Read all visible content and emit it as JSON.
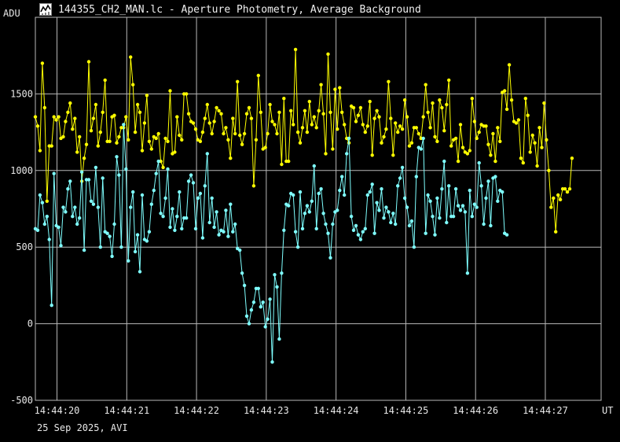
{
  "window": {
    "title": "144355_CH2_MAN.lc - Aperture Photometry, Average Background",
    "icon": "chart-app-icon"
  },
  "footer": {
    "text": "25 Sep 2025, AVI"
  },
  "colors": {
    "background": "#000000",
    "grid": "#b8b8b8",
    "series_yellow": "#ffff00",
    "series_cyan": "#7fffff"
  },
  "chart_data": {
    "type": "line",
    "title": "",
    "xlabel": "UT",
    "ylabel": "ADU",
    "grid": true,
    "ylim": [
      -500,
      2000
    ],
    "yticks": [
      -500,
      0,
      500,
      1000,
      1500
    ],
    "xlim": [
      "14:44:19.69",
      "14:44:27.80"
    ],
    "xtick_labels": [
      "14:44:20",
      "14:44:21",
      "14:44:22",
      "14:44:23",
      "14:44:24",
      "14:44:25",
      "14:44:26",
      "14:44:27"
    ],
    "x_start": "14:44:19.69",
    "x_step_s": 0.0333,
    "series": [
      {
        "color": "#ffff00",
        "values": [
          1350,
          1290,
          1130,
          1700,
          1410,
          800,
          1160,
          1160,
          1350,
          1330,
          1350,
          1210,
          1220,
          1320,
          1380,
          1440,
          1270,
          1340,
          1120,
          1220,
          930,
          1080,
          1170,
          1710,
          1260,
          1340,
          1430,
          1160,
          1250,
          1380,
          1590,
          1190,
          1190,
          1350,
          1360,
          1180,
          1220,
          1280,
          1280,
          1350,
          1200,
          1740,
          1560,
          1250,
          1430,
          1380,
          1130,
          1310,
          1490,
          1190,
          1140,
          1220,
          1210,
          1240,
          1060,
          1020,
          1210,
          1190,
          1520,
          1110,
          1120,
          1350,
          1230,
          1200,
          1500,
          1500,
          1370,
          1320,
          1310,
          1270,
          1200,
          1190,
          1250,
          1340,
          1430,
          1310,
          1240,
          1320,
          1410,
          1390,
          1370,
          1240,
          1280,
          1200,
          1080,
          1340,
          1240,
          1580,
          1230,
          1170,
          1240,
          1370,
          1410,
          1340,
          900,
          1200,
          1620,
          1380,
          1140,
          1150,
          1240,
          1430,
          1320,
          1300,
          1240,
          1380,
          1040,
          1470,
          1060,
          1060,
          1390,
          1300,
          1790,
          1250,
          1180,
          1280,
          1390,
          1250,
          1450,
          1300,
          1350,
          1280,
          1390,
          1560,
          1370,
          1110,
          1760,
          1380,
          1140,
          1530,
          1270,
          1540,
          1380,
          1300,
          1210,
          1180,
          1420,
          1410,
          1320,
          1360,
          1410,
          1300,
          1250,
          1290,
          1450,
          1100,
          1340,
          1390,
          1350,
          1180,
          1220,
          1270,
          1580,
          1340,
          1100,
          1310,
          1250,
          1290,
          1270,
          1460,
          1350,
          1160,
          1180,
          1280,
          1280,
          1240,
          1210,
          1350,
          1560,
          1380,
          1280,
          1440,
          1220,
          1190,
          1460,
          1410,
          1260,
          1430,
          1590,
          1160,
          1200,
          1210,
          1060,
          1300,
          1150,
          1120,
          1110,
          1130,
          1470,
          1320,
          1210,
          1250,
          1300,
          1290,
          1290,
          1170,
          1100,
          1240,
          1060,
          1280,
          1190,
          1510,
          1520,
          1400,
          1690,
          1460,
          1320,
          1310,
          1330,
          1080,
          1050,
          1470,
          1360,
          1120,
          1230,
          1180,
          1030,
          1280,
          1150,
          1440,
          1200,
          1000,
          760,
          820,
          600,
          840,
          810,
          880,
          880,
          860,
          880,
          1080
        ]
      },
      {
        "color": "#7fffff",
        "values": [
          620,
          610,
          840,
          790,
          650,
          700,
          550,
          120,
          980,
          640,
          630,
          510,
          760,
          730,
          880,
          930,
          700,
          760,
          650,
          690,
          990,
          480,
          940,
          940,
          800,
          780,
          1020,
          760,
          500,
          950,
          600,
          590,
          570,
          440,
          650,
          1090,
          970,
          500,
          1300,
          1010,
          410,
          760,
          860,
          470,
          580,
          340,
          840,
          550,
          540,
          600,
          780,
          870,
          980,
          1060,
          720,
          700,
          820,
          1010,
          630,
          750,
          610,
          700,
          860,
          620,
          690,
          690,
          930,
          970,
          920,
          620,
          820,
          850,
          560,
          900,
          1110,
          660,
          820,
          630,
          730,
          580,
          610,
          600,
          740,
          570,
          780,
          600,
          650,
          490,
          480,
          330,
          250,
          50,
          0,
          90,
          140,
          230,
          230,
          110,
          140,
          -20,
          30,
          160,
          -250,
          320,
          240,
          -100,
          330,
          610,
          780,
          770,
          850,
          840,
          600,
          500,
          860,
          620,
          720,
          770,
          730,
          800,
          1030,
          620,
          850,
          880,
          720,
          650,
          590,
          430,
          650,
          730,
          740,
          870,
          960,
          840,
          1110,
          1210,
          700,
          610,
          640,
          580,
          550,
          600,
          620,
          840,
          860,
          910,
          590,
          790,
          740,
          880,
          690,
          760,
          730,
          660,
          720,
          650,
          900,
          950,
          1020,
          820,
          760,
          640,
          670,
          500,
          960,
          1150,
          1140,
          1210,
          590,
          840,
          800,
          700,
          580,
          820,
          690,
          880,
          1060,
          660,
          900,
          700,
          700,
          880,
          770,
          740,
          770,
          730,
          330,
          870,
          700,
          780,
          760,
          1050,
          900,
          650,
          820,
          930,
          640,
          950,
          960,
          800,
          870,
          860,
          590,
          580
        ]
      }
    ]
  }
}
